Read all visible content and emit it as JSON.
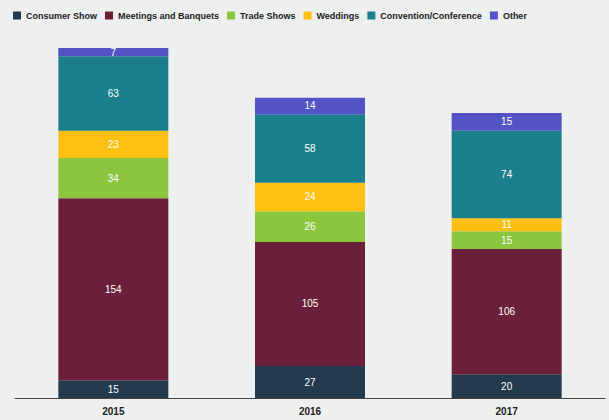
{
  "chart_data": {
    "type": "bar",
    "stacked": true,
    "data_labels": true,
    "tick_labels": "x",
    "grid": false,
    "legend": "top",
    "categories": [
      "2015",
      "2016",
      "2017"
    ],
    "series": [
      {
        "name": "Consumer Show",
        "color": "#243a4f",
        "values": [
          15,
          27,
          20
        ]
      },
      {
        "name": "Meetings and Banquets",
        "color": "#6b1f3a",
        "values": [
          154,
          105,
          106
        ]
      },
      {
        "name": "Trade Shows",
        "color": "#8cc63f",
        "values": [
          34,
          26,
          15
        ]
      },
      {
        "name": "Weddings",
        "color": "#fdc010",
        "values": [
          23,
          24,
          11
        ]
      },
      {
        "name": "Convention/Conference",
        "color": "#1a7f8a",
        "values": [
          63,
          58,
          74
        ]
      },
      {
        "name": "Other",
        "color": "#5353c6",
        "values": [
          7,
          14,
          15
        ]
      }
    ],
    "totals": [
      296,
      254,
      241
    ]
  }
}
